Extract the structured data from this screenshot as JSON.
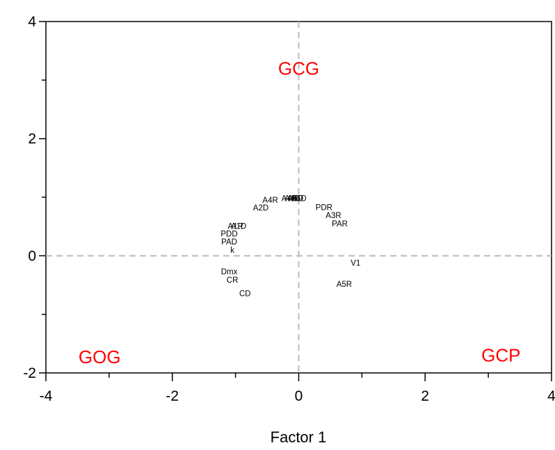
{
  "chart_data": {
    "type": "scatter",
    "title": "",
    "xlabel": "Factor 1",
    "ylabel": "",
    "xlim": [
      -4,
      4
    ],
    "ylim": [
      -2,
      4
    ],
    "x_ticks": [
      -4,
      -2,
      0,
      2,
      4
    ],
    "y_ticks": [
      -2,
      0,
      2,
      4
    ],
    "x_tick_labels": [
      "-4",
      "-2",
      "0",
      "2",
      "4"
    ],
    "y_tick_labels": [
      "-2",
      "0",
      "2",
      "4"
    ],
    "grid": false,
    "reference_lines": {
      "x": 0,
      "y": 0,
      "style": "dashed",
      "color": "#bbbbbb"
    },
    "points": [
      {
        "label": "A4D",
        "x": -0.15,
        "y": 0.98
      },
      {
        "label": "A4D",
        "x": -0.1,
        "y": 0.98
      },
      {
        "label": "A6D",
        "x": -0.05,
        "y": 0.98
      },
      {
        "label": "A6D",
        "x": 0.0,
        "y": 0.98
      },
      {
        "label": "A4R",
        "x": -0.45,
        "y": 0.95
      },
      {
        "label": "A2D",
        "x": -0.6,
        "y": 0.82
      },
      {
        "label": "PDR",
        "x": 0.4,
        "y": 0.83
      },
      {
        "label": "A3R",
        "x": 0.55,
        "y": 0.69
      },
      {
        "label": "PAR",
        "x": 0.65,
        "y": 0.55
      },
      {
        "label": "A1R",
        "x": -1.0,
        "y": 0.51
      },
      {
        "label": "A1D",
        "x": -0.95,
        "y": 0.51
      },
      {
        "label": "PDD",
        "x": -1.1,
        "y": 0.38
      },
      {
        "label": "PAD",
        "x": -1.1,
        "y": 0.24
      },
      {
        "label": "k",
        "x": -1.05,
        "y": 0.1
      },
      {
        "label": "V1",
        "x": 0.9,
        "y": -0.12
      },
      {
        "label": "Dmx",
        "x": -1.1,
        "y": -0.27
      },
      {
        "label": "CR",
        "x": -1.05,
        "y": -0.41
      },
      {
        "label": "CD",
        "x": -0.85,
        "y": -0.64
      },
      {
        "label": "A5R",
        "x": 0.72,
        "y": -0.48
      }
    ],
    "region_labels": [
      {
        "text": "GCG",
        "x": 0.0,
        "y": 3.2
      },
      {
        "text": "GOG",
        "x": -3.15,
        "y": -1.73
      },
      {
        "text": "GCP",
        "x": 3.2,
        "y": -1.7
      }
    ],
    "colors": {
      "region_labels": "#ff0000",
      "points": "#000000",
      "reference_lines": "#bbbbbb"
    }
  }
}
